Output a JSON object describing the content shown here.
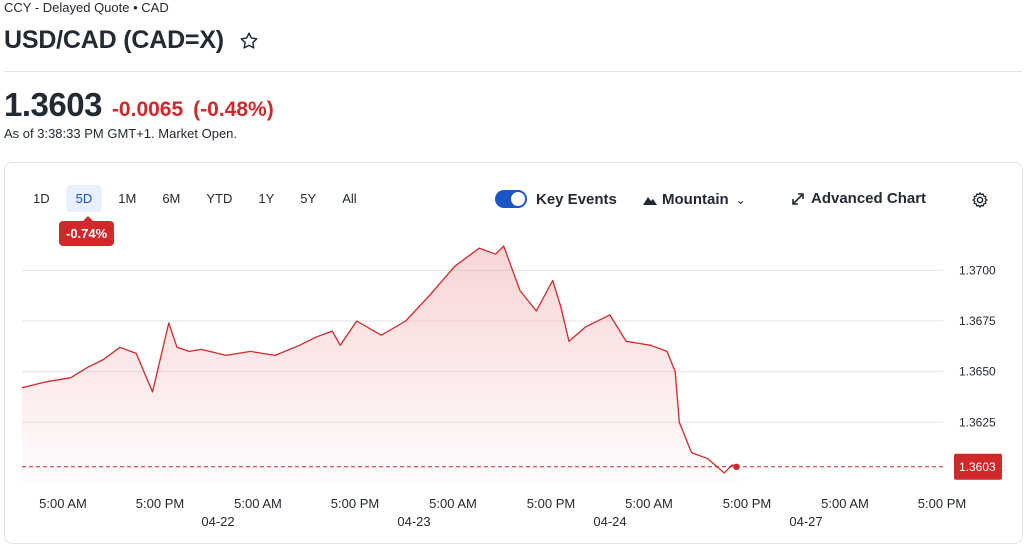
{
  "header": {
    "meta": "CCY - Delayed Quote • CAD",
    "title": "USD/CAD (CAD=X)",
    "price": "1.3603",
    "change": "-0.0065",
    "change_pct": "(-0.48%)",
    "as_of": "As of 3:38:33 PM GMT+1. Market Open.",
    "colors": {
      "down": "#d1282b",
      "accent": "#1a56c6"
    }
  },
  "toolbar": {
    "ranges": [
      "1D",
      "5D",
      "1M",
      "6M",
      "YTD",
      "1Y",
      "5Y",
      "All"
    ],
    "active_range": "5D",
    "range_perf": "-0.74%",
    "key_events_label": "Key Events",
    "key_events_on": true,
    "chart_type_label": "Mountain",
    "advanced_label": "Advanced Chart",
    "icons": [
      "star-icon",
      "mountain-icon",
      "chevron-down-icon",
      "expand-icon",
      "gear-icon"
    ]
  },
  "chart_data": {
    "type": "area",
    "title": "",
    "xlabel": "",
    "ylabel": "",
    "ylim": [
      1.3595,
      1.3716
    ],
    "y_ticks": [
      "1.3700",
      "1.3675",
      "1.3650",
      "1.3625"
    ],
    "y_tick_values": [
      1.37,
      1.3675,
      1.365,
      1.3625
    ],
    "x_ticks": [
      "5:00 AM",
      "5:00 PM",
      "5:00 AM",
      "5:00 PM",
      "5:00 AM",
      "5:00 PM",
      "5:00 AM",
      "5:00 PM",
      "5:00 AM",
      "5:00 PM"
    ],
    "dates": [
      "04-22",
      "04-23",
      "04-24",
      "04-27"
    ],
    "reference_value": 1.3603,
    "last_value_label": "1.3603",
    "grid": true,
    "series": [
      {
        "color": "#d1282b",
        "x": [
          "04-21 23:00",
          "04-22 02:00",
          "04-22 05:00",
          "04-22 07:00",
          "04-22 09:00",
          "04-22 11:00",
          "04-22 13:00",
          "04-22 15:00",
          "04-22 17:00",
          "04-22 18:00",
          "04-22 19:30",
          "04-22 21:00",
          "04-23 00:00",
          "04-23 03:00",
          "04-23 06:00",
          "04-23 09:00",
          "04-23 11:00",
          "04-23 13:00",
          "04-23 14:00",
          "04-23 16:00",
          "04-23 19:00",
          "04-23 22:00",
          "04-24 01:00",
          "04-24 04:00",
          "04-24 07:00",
          "04-24 09:00",
          "04-24 10:00",
          "04-24 12:00",
          "04-24 14:00",
          "04-24 16:00",
          "04-24 17:00",
          "04-24 18:00",
          "04-24 20:00",
          "04-24 23:00",
          "04-27 01:00",
          "04-27 04:00",
          "04-27 06:00",
          "04-27 07:00",
          "04-27 07:30",
          "04-27 09:00",
          "04-27 11:00",
          "04-27 13:00",
          "04-27 14:00",
          "04-27 14:30"
        ],
        "y": [
          1.3642,
          1.3645,
          1.3647,
          1.3652,
          1.3656,
          1.3662,
          1.3659,
          1.364,
          1.3674,
          1.3662,
          1.366,
          1.3661,
          1.3658,
          1.366,
          1.3658,
          1.3663,
          1.3667,
          1.367,
          1.3663,
          1.3675,
          1.3668,
          1.3675,
          1.3688,
          1.3702,
          1.3711,
          1.3708,
          1.3712,
          1.369,
          1.368,
          1.3695,
          1.3682,
          1.3665,
          1.3672,
          1.3678,
          1.3665,
          1.3663,
          1.366,
          1.365,
          1.3625,
          1.361,
          1.3607,
          1.36,
          1.3604,
          1.3603
        ]
      }
    ]
  }
}
